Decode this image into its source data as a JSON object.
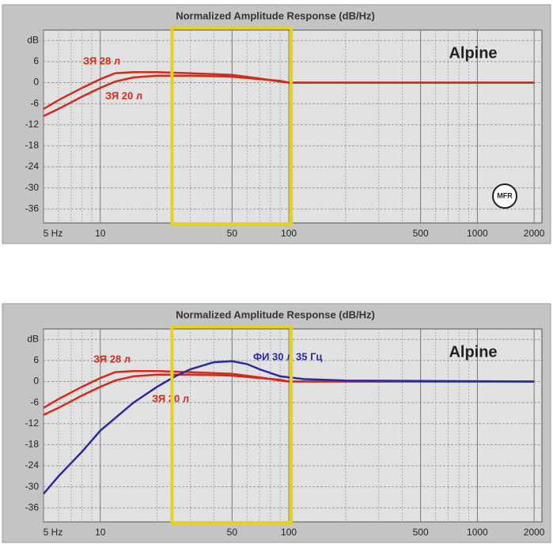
{
  "chart_data": [
    {
      "type": "line",
      "title": "Normalized Amplitude Response (dB/Hz)",
      "label": "Alpine",
      "badge": "MFR",
      "xscale": "log",
      "xlim": [
        5,
        2200
      ],
      "ylim": [
        -40,
        15
      ],
      "xticks": [
        {
          "value": 5,
          "label": "5 Hz"
        },
        10,
        50,
        100,
        500,
        1000,
        2000
      ],
      "xminor": [
        6,
        7,
        8,
        9,
        20,
        30,
        40,
        60,
        70,
        80,
        90,
        200,
        300,
        400,
        600,
        700,
        800,
        900
      ],
      "yticks": [
        {
          "value": 12,
          "label": "dB"
        },
        6,
        0,
        -6,
        -12,
        -18,
        -24,
        -30,
        -36
      ],
      "grid": true,
      "highlight": {
        "x": [
          24,
          103
        ],
        "color": "#e6d21c"
      },
      "series": [
        {
          "name": "ЗЯ 28 л",
          "color": "#d42a1a",
          "x": [
            5,
            6,
            8,
            10,
            12,
            15,
            20,
            30,
            50,
            70,
            90,
            100,
            2000
          ],
          "values": [
            -7.5,
            -5,
            -1.5,
            1,
            2.7,
            3,
            3,
            2.7,
            2.2,
            1.2,
            0.3,
            0,
            0
          ]
        },
        {
          "name": "ЗЯ 20 л",
          "color": "#d42a1a",
          "x": [
            5,
            6,
            8,
            10,
            12,
            15,
            20,
            30,
            50,
            70,
            90,
            100,
            2000
          ],
          "values": [
            -9.5,
            -7.5,
            -4,
            -1.5,
            0.3,
            1.5,
            2,
            2,
            1.7,
            1,
            0.5,
            0,
            0
          ]
        }
      ]
    },
    {
      "type": "line",
      "title": "Normalized Amplitude Response (dB/Hz)",
      "label": "Alpine",
      "xscale": "log",
      "xlim": [
        5,
        2200
      ],
      "ylim": [
        -40,
        15
      ],
      "xticks": [
        {
          "value": 5,
          "label": "5 Hz"
        },
        10,
        50,
        100,
        500,
        1000,
        2000
      ],
      "xminor": [
        6,
        7,
        8,
        9,
        20,
        30,
        40,
        60,
        70,
        80,
        90,
        200,
        300,
        400,
        600,
        700,
        800,
        900
      ],
      "yticks": [
        {
          "value": 12,
          "label": "dB"
        },
        6,
        0,
        -6,
        -12,
        -18,
        -24,
        -30,
        -36
      ],
      "grid": true,
      "highlight": {
        "x": [
          24,
          103
        ],
        "color": "#e6d21c"
      },
      "series": [
        {
          "name": "ЗЯ 28 л",
          "color": "#d42a1a",
          "x": [
            5,
            6,
            8,
            10,
            12,
            15,
            20,
            30,
            50,
            70,
            90,
            100,
            2000
          ],
          "values": [
            -7.5,
            -5,
            -1.5,
            1,
            2.7,
            3,
            3,
            2.7,
            2.2,
            1.2,
            0.3,
            0,
            0
          ]
        },
        {
          "name": "ЗЯ 20 л",
          "color": "#d42a1a",
          "x": [
            5,
            6,
            8,
            10,
            12,
            15,
            20,
            30,
            50,
            70,
            90,
            100,
            2000
          ],
          "values": [
            -9.5,
            -7.5,
            -4,
            -1.5,
            0.3,
            1.5,
            2,
            2,
            1.7,
            1,
            0.5,
            0,
            0
          ]
        },
        {
          "name": "ФИ 30 л 35 Гц",
          "color": "#2a2aa0",
          "x": [
            5,
            6,
            8,
            10,
            15,
            20,
            25,
            30,
            40,
            50,
            60,
            70,
            90,
            120,
            200,
            2000
          ],
          "values": [
            -32,
            -27,
            -20,
            -14,
            -6,
            -1.5,
            1.5,
            3.5,
            5.5,
            5.8,
            5,
            3.5,
            1.5,
            0.7,
            0.3,
            0
          ]
        }
      ]
    }
  ]
}
